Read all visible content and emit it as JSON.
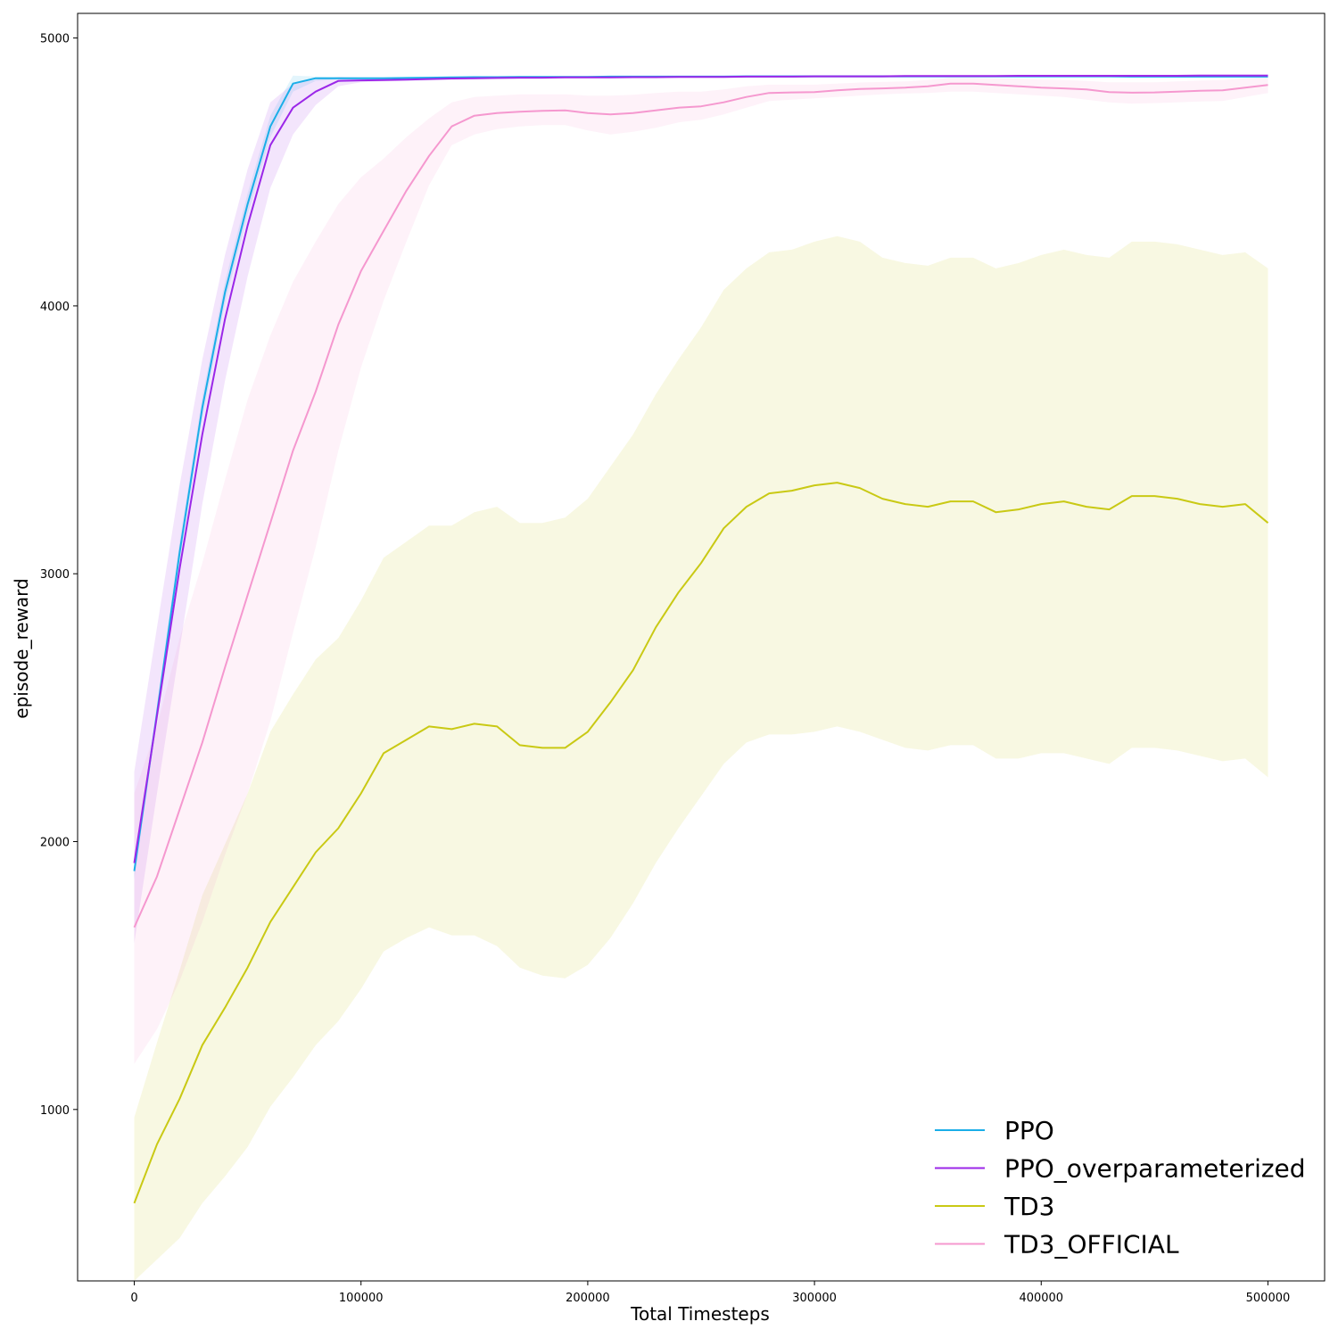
{
  "chart_data": {
    "type": "line",
    "title": "",
    "xlabel": "Total Timesteps",
    "ylabel": "episode_reward",
    "xlim": [
      -25000,
      525000
    ],
    "ylim": [
      360,
      5092
    ],
    "x_ticks": [
      0,
      100000,
      200000,
      300000,
      400000,
      500000
    ],
    "y_ticks": [
      1000,
      2000,
      3000,
      4000,
      5000
    ],
    "grid": false,
    "legend": "bottom-right",
    "x": [
      0,
      10000,
      20000,
      30000,
      40000,
      50000,
      60000,
      70000,
      80000,
      90000,
      100000,
      110000,
      120000,
      130000,
      140000,
      150000,
      160000,
      170000,
      180000,
      190000,
      200000,
      210000,
      220000,
      230000,
      240000,
      250000,
      260000,
      270000,
      280000,
      290000,
      300000,
      310000,
      320000,
      330000,
      340000,
      350000,
      360000,
      370000,
      380000,
      390000,
      400000,
      410000,
      420000,
      430000,
      440000,
      450000,
      460000,
      470000,
      480000,
      490000,
      500000
    ],
    "series": [
      {
        "name": "PPO",
        "color": "#1aaee8",
        "values": [
          1890,
          2480,
          3080,
          3620,
          4050,
          4380,
          4670,
          4830,
          4850,
          4850,
          4850,
          4850,
          4851,
          4852,
          4853,
          4854,
          4854,
          4855,
          4855,
          4855,
          4855,
          4856,
          4856,
          4856,
          4856,
          4856,
          4856,
          4857,
          4857,
          4857,
          4857,
          4857,
          4857,
          4857,
          4857,
          4857,
          4857,
          4857,
          4857,
          4857,
          4857,
          4857,
          4857,
          4857,
          4856,
          4856,
          4856,
          4856,
          4856,
          4856,
          4856
        ],
        "lower": [
          1860,
          2450,
          3040,
          3580,
          4010,
          4340,
          4630,
          4800,
          4840,
          4845,
          4846,
          4847,
          4848,
          4849,
          4850,
          4850,
          4851,
          4851,
          4852,
          4852,
          4852,
          4852,
          4852,
          4853,
          4853,
          4853,
          4853,
          4853,
          4853,
          4853,
          4853,
          4853,
          4853,
          4853,
          4853,
          4853,
          4853,
          4853,
          4853,
          4853,
          4853,
          4853,
          4853,
          4853,
          4852,
          4852,
          4852,
          4852,
          4852,
          4852,
          4852
        ],
        "upper": [
          1920,
          2510,
          3120,
          3660,
          4090,
          4420,
          4710,
          4860,
          4856,
          4855,
          4855,
          4855,
          4855,
          4856,
          4857,
          4858,
          4858,
          4859,
          4859,
          4859,
          4859,
          4860,
          4860,
          4860,
          4860,
          4860,
          4860,
          4861,
          4861,
          4861,
          4861,
          4861,
          4861,
          4861,
          4861,
          4861,
          4861,
          4861,
          4861,
          4861,
          4861,
          4861,
          4861,
          4861,
          4860,
          4860,
          4860,
          4860,
          4860,
          4860,
          4860
        ]
      },
      {
        "name": "PPO_overparameterized",
        "color": "#9b27e8",
        "values": [
          1920,
          2470,
          3020,
          3520,
          3950,
          4300,
          4600,
          4740,
          4800,
          4840,
          4842,
          4843,
          4845,
          4847,
          4849,
          4850,
          4851,
          4852,
          4852,
          4853,
          4853,
          4853,
          4854,
          4854,
          4855,
          4855,
          4855,
          4856,
          4856,
          4856,
          4857,
          4857,
          4857,
          4857,
          4858,
          4858,
          4858,
          4858,
          4858,
          4859,
          4859,
          4859,
          4859,
          4859,
          4859,
          4859,
          4859,
          4860,
          4860,
          4860,
          4860
        ],
        "lower": [
          1620,
          2180,
          2720,
          3260,
          3720,
          4110,
          4440,
          4640,
          4750,
          4820,
          4835,
          4838,
          4840,
          4842,
          4844,
          4846,
          4847,
          4848,
          4848,
          4849,
          4849,
          4849,
          4850,
          4850,
          4851,
          4851,
          4851,
          4852,
          4852,
          4852,
          4853,
          4853,
          4853,
          4853,
          4854,
          4854,
          4854,
          4854,
          4854,
          4855,
          4855,
          4855,
          4855,
          4855,
          4855,
          4855,
          4855,
          4856,
          4856,
          4856,
          4856
        ],
        "upper": [
          2260,
          2800,
          3330,
          3800,
          4190,
          4510,
          4760,
          4830,
          4845,
          4855,
          4852,
          4850,
          4851,
          4852,
          4854,
          4855,
          4856,
          4857,
          4857,
          4858,
          4858,
          4858,
          4859,
          4859,
          4860,
          4860,
          4860,
          4861,
          4861,
          4861,
          4862,
          4862,
          4862,
          4862,
          4863,
          4863,
          4863,
          4863,
          4863,
          4864,
          4864,
          4864,
          4864,
          4864,
          4864,
          4864,
          4864,
          4865,
          4865,
          4865,
          4865
        ]
      },
      {
        "name": "TD3",
        "color": "#c9c914",
        "values": [
          650,
          870,
          1040,
          1240,
          1380,
          1530,
          1700,
          1830,
          1960,
          2050,
          2180,
          2330,
          2380,
          2430,
          2420,
          2440,
          2430,
          2360,
          2350,
          2350,
          2410,
          2520,
          2640,
          2800,
          2930,
          3040,
          3170,
          3250,
          3300,
          3310,
          3330,
          3340,
          3320,
          3280,
          3260,
          3250,
          3270,
          3270,
          3230,
          3240,
          3260,
          3270,
          3250,
          3240,
          3290,
          3290,
          3280,
          3260,
          3250,
          3260,
          3190
        ],
        "lower": [
          360,
          440,
          520,
          650,
          750,
          860,
          1010,
          1120,
          1240,
          1330,
          1450,
          1590,
          1640,
          1680,
          1650,
          1650,
          1610,
          1530,
          1500,
          1490,
          1540,
          1640,
          1770,
          1920,
          2050,
          2170,
          2290,
          2370,
          2400,
          2400,
          2410,
          2430,
          2410,
          2380,
          2350,
          2340,
          2360,
          2360,
          2310,
          2310,
          2330,
          2330,
          2310,
          2290,
          2350,
          2350,
          2340,
          2320,
          2300,
          2310,
          2240
        ],
        "upper": [
          970,
          1250,
          1520,
          1800,
          1990,
          2180,
          2410,
          2550,
          2680,
          2760,
          2900,
          3060,
          3120,
          3180,
          3180,
          3230,
          3250,
          3190,
          3190,
          3210,
          3280,
          3400,
          3520,
          3670,
          3800,
          3920,
          4060,
          4140,
          4200,
          4210,
          4240,
          4260,
          4240,
          4180,
          4160,
          4150,
          4180,
          4180,
          4140,
          4160,
          4190,
          4210,
          4190,
          4180,
          4240,
          4240,
          4230,
          4210,
          4190,
          4200,
          4140
        ]
      },
      {
        "name": "TD3_OFFICIAL",
        "color": "#f598cf",
        "values": [
          1680,
          1870,
          2120,
          2370,
          2650,
          2920,
          3190,
          3460,
          3680,
          3930,
          4130,
          4280,
          4430,
          4560,
          4670,
          4710,
          4720,
          4725,
          4728,
          4730,
          4720,
          4715,
          4720,
          4730,
          4740,
          4745,
          4760,
          4780,
          4795,
          4797,
          4798,
          4805,
          4810,
          4812,
          4815,
          4820,
          4830,
          4830,
          4825,
          4820,
          4815,
          4812,
          4808,
          4798,
          4796,
          4797,
          4800,
          4803,
          4805,
          4815,
          4825
        ],
        "lower": [
          1170,
          1300,
          1480,
          1700,
          1950,
          2180,
          2450,
          2780,
          3100,
          3460,
          3770,
          4020,
          4240,
          4450,
          4600,
          4640,
          4660,
          4670,
          4675,
          4675,
          4655,
          4640,
          4650,
          4665,
          4685,
          4695,
          4715,
          4740,
          4765,
          4770,
          4775,
          4780,
          4785,
          4790,
          4793,
          4795,
          4800,
          4800,
          4795,
          4790,
          4785,
          4780,
          4770,
          4760,
          4755,
          4757,
          4760,
          4763,
          4765,
          4780,
          4795
        ],
        "upper": [
          2180,
          2430,
          2760,
          3040,
          3350,
          3650,
          3890,
          4090,
          4240,
          4380,
          4480,
          4550,
          4630,
          4700,
          4760,
          4780,
          4785,
          4790,
          4790,
          4790,
          4785,
          4785,
          4788,
          4795,
          4800,
          4800,
          4808,
          4820,
          4826,
          4826,
          4826,
          4830,
          4834,
          4836,
          4838,
          4843,
          4852,
          4852,
          4850,
          4848,
          4845,
          4843,
          4840,
          4835,
          4835,
          4835,
          4838,
          4841,
          4843,
          4850,
          4855
        ]
      }
    ]
  }
}
